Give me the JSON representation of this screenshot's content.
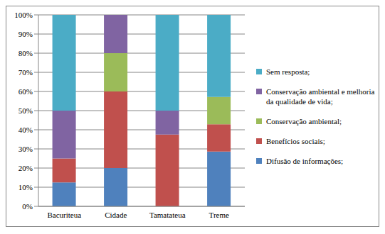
{
  "chart_data": {
    "type": "bar",
    "stacked": true,
    "categories": [
      "Bacuriteua",
      "Cidade",
      "Tamatateua",
      "Treme"
    ],
    "series": [
      {
        "name": "Difusão de informações;",
        "color": "#4f81bd",
        "values": [
          12.5,
          20,
          0,
          28.57
        ]
      },
      {
        "name": "Benefícios sociais;",
        "color": "#c0504d",
        "values": [
          12.5,
          40,
          37.5,
          14.29
        ]
      },
      {
        "name": "Conservação ambiental;",
        "color": "#9bbb59",
        "values": [
          0,
          20,
          0,
          14.29
        ]
      },
      {
        "name": "Conservação ambiental e melhoria da qualidade de vida;",
        "color": "#8064a2",
        "values": [
          25,
          20,
          12.5,
          0
        ]
      },
      {
        "name": "Sem resposta;",
        "color": "#4bacc6",
        "values": [
          50,
          0,
          50,
          42.85
        ]
      }
    ],
    "ylim": [
      0,
      100
    ],
    "yticks": [
      {
        "value": 0,
        "label": "0%"
      },
      {
        "value": 10,
        "label": "10%"
      },
      {
        "value": 20,
        "label": "20%"
      },
      {
        "value": 30,
        "label": "30%"
      },
      {
        "value": 40,
        "label": "40%"
      },
      {
        "value": 50,
        "label": "50%"
      },
      {
        "value": 60,
        "label": "60%"
      },
      {
        "value": 70,
        "label": "70%"
      },
      {
        "value": 80,
        "label": "80%"
      },
      {
        "value": 90,
        "label": "90%"
      },
      {
        "value": 100,
        "label": "100%"
      }
    ],
    "grid": true,
    "legend": "right"
  }
}
